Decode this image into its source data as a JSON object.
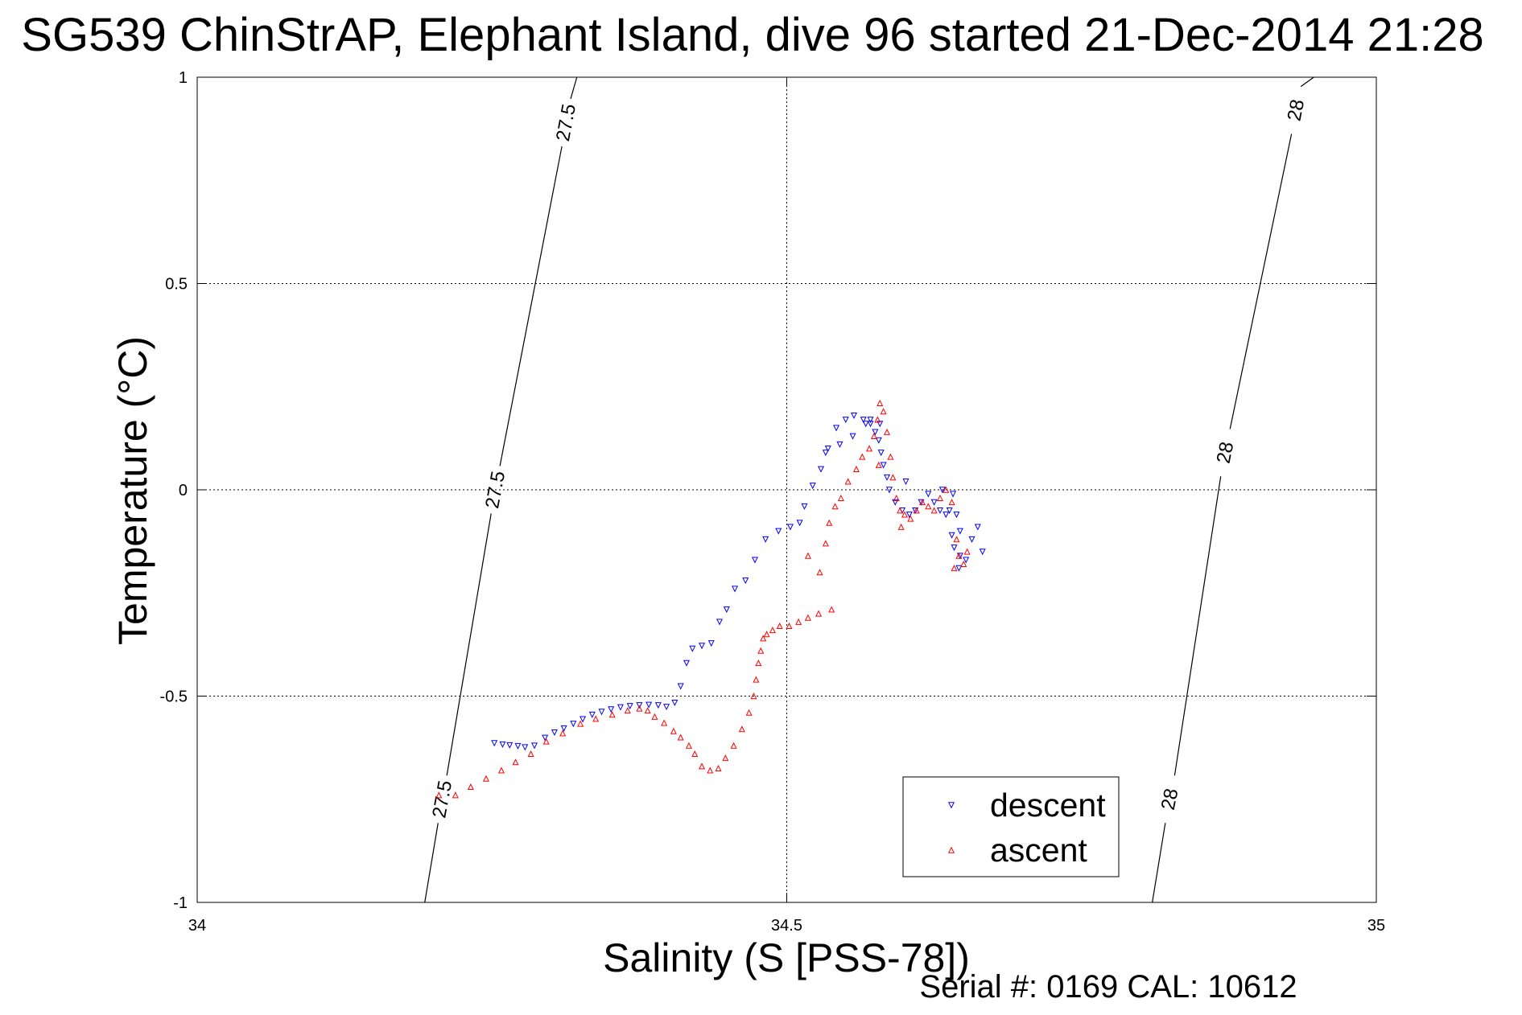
{
  "chart_data": {
    "type": "scatter",
    "title": "SG539 ChinStrAP, Elephant Island, dive 96 started 21-Dec-2014 21:28",
    "xlabel": "Salinity (S [PSS-78])",
    "ylabel": "Temperature (°C)",
    "xlim": [
      34,
      35
    ],
    "ylim": [
      -1,
      1
    ],
    "xticks": [
      34,
      34.5,
      35
    ],
    "xtick_labels": [
      "34",
      "34.5",
      "35"
    ],
    "yticks": [
      1,
      0.5,
      0,
      -0.5,
      -1
    ],
    "ytick_labels": [
      "1",
      "0.5",
      "0",
      "-0.5",
      "-1"
    ],
    "grid": true,
    "legend_position": "bottom-right",
    "footer": "Serial #: 0169 CAL: 10612",
    "isopycnals": [
      {
        "label": "27.5",
        "points": [
          [
            34.193,
            -1.0
          ],
          [
            34.322,
            1.0
          ]
        ],
        "label_positions": [
          [
            34.208,
            -0.75
          ],
          [
            34.253,
            0.0
          ],
          [
            34.313,
            0.89
          ]
        ]
      },
      {
        "label": "28",
        "points": [
          [
            34.81,
            -1.0
          ],
          [
            34.947,
            1.0
          ]
        ],
        "label_positions": [
          [
            34.825,
            -0.75
          ],
          [
            34.872,
            0.09
          ],
          [
            34.932,
            0.92
          ]
        ]
      }
    ],
    "series": [
      {
        "name": "descent",
        "color": "#0000ff",
        "marker": "triangle-down",
        "points": [
          [
            34.252,
            -0.614
          ],
          [
            34.259,
            -0.617
          ],
          [
            34.265,
            -0.619
          ],
          [
            34.272,
            -0.621
          ],
          [
            34.278,
            -0.624
          ],
          [
            34.286,
            -0.62
          ],
          [
            34.295,
            -0.601
          ],
          [
            34.303,
            -0.588
          ],
          [
            34.311,
            -0.578
          ],
          [
            34.319,
            -0.567
          ],
          [
            34.327,
            -0.556
          ],
          [
            34.335,
            -0.545
          ],
          [
            34.343,
            -0.538
          ],
          [
            34.351,
            -0.532
          ],
          [
            34.359,
            -0.527
          ],
          [
            34.367,
            -0.524
          ],
          [
            34.375,
            -0.522
          ],
          [
            34.383,
            -0.521
          ],
          [
            34.391,
            -0.522
          ],
          [
            34.398,
            -0.526
          ],
          [
            34.405,
            -0.516
          ],
          [
            34.41,
            -0.476
          ],
          [
            34.415,
            -0.42
          ],
          [
            34.42,
            -0.385
          ],
          [
            34.428,
            -0.378
          ],
          [
            34.436,
            -0.372
          ],
          [
            34.443,
            -0.32
          ],
          [
            34.449,
            -0.29
          ],
          [
            34.456,
            -0.24
          ],
          [
            34.465,
            -0.22
          ],
          [
            34.473,
            -0.17
          ],
          [
            34.482,
            -0.12
          ],
          [
            34.493,
            -0.1
          ],
          [
            34.503,
            -0.09
          ],
          [
            34.511,
            -0.08
          ],
          [
            34.515,
            -0.04
          ],
          [
            34.522,
            0.01
          ],
          [
            34.529,
            0.05
          ],
          [
            34.535,
            0.1
          ],
          [
            34.542,
            0.15
          ],
          [
            34.55,
            0.17
          ],
          [
            34.557,
            0.18
          ],
          [
            34.565,
            0.17
          ],
          [
            34.571,
            0.16
          ],
          [
            34.575,
            0.14
          ],
          [
            34.578,
            0.12
          ],
          [
            34.58,
            0.09
          ],
          [
            34.582,
            0.06
          ],
          [
            34.585,
            0.03
          ],
          [
            34.587,
            0.0
          ],
          [
            34.592,
            -0.03
          ],
          [
            34.598,
            -0.05
          ],
          [
            34.604,
            -0.06
          ],
          [
            34.609,
            -0.05
          ],
          [
            34.614,
            -0.03
          ],
          [
            34.62,
            -0.01
          ],
          [
            34.625,
            -0.03
          ],
          [
            34.63,
            -0.05
          ],
          [
            34.635,
            -0.06
          ],
          [
            34.638,
            -0.05
          ],
          [
            34.641,
            -0.01
          ],
          [
            34.644,
            -0.06
          ],
          [
            34.647,
            -0.1
          ],
          [
            34.642,
            -0.14
          ],
          [
            34.647,
            -0.16
          ],
          [
            34.652,
            -0.17
          ],
          [
            34.657,
            -0.12
          ],
          [
            34.662,
            -0.09
          ],
          [
            34.666,
            -0.15
          ],
          [
            34.646,
            -0.19
          ],
          [
            34.64,
            -0.11
          ],
          [
            34.632,
            0.0
          ],
          [
            34.601,
            0.02
          ],
          [
            34.579,
            0.16
          ],
          [
            34.571,
            0.17
          ],
          [
            34.567,
            0.16
          ],
          [
            34.556,
            0.13
          ],
          [
            34.545,
            0.11
          ],
          [
            34.533,
            0.09
          ]
        ]
      },
      {
        "name": "ascent",
        "color": "#ff0000",
        "marker": "triangle-up",
        "points": [
          [
            34.205,
            -0.74
          ],
          [
            34.219,
            -0.74
          ],
          [
            34.232,
            -0.72
          ],
          [
            34.245,
            -0.7
          ],
          [
            34.258,
            -0.68
          ],
          [
            34.27,
            -0.66
          ],
          [
            34.283,
            -0.64
          ],
          [
            34.296,
            -0.61
          ],
          [
            34.31,
            -0.59
          ],
          [
            34.325,
            -0.567
          ],
          [
            34.338,
            -0.555
          ],
          [
            34.352,
            -0.545
          ],
          [
            34.365,
            -0.535
          ],
          [
            34.375,
            -0.53
          ],
          [
            34.382,
            -0.535
          ],
          [
            34.388,
            -0.55
          ],
          [
            34.396,
            -0.565
          ],
          [
            34.404,
            -0.585
          ],
          [
            34.41,
            -0.6
          ],
          [
            34.417,
            -0.62
          ],
          [
            34.422,
            -0.64
          ],
          [
            34.428,
            -0.67
          ],
          [
            34.435,
            -0.68
          ],
          [
            34.442,
            -0.675
          ],
          [
            34.448,
            -0.65
          ],
          [
            34.455,
            -0.62
          ],
          [
            34.462,
            -0.58
          ],
          [
            34.468,
            -0.54
          ],
          [
            34.472,
            -0.5
          ],
          [
            34.474,
            -0.46
          ],
          [
            34.476,
            -0.42
          ],
          [
            34.478,
            -0.39
          ],
          [
            34.48,
            -0.36
          ],
          [
            34.483,
            -0.35
          ],
          [
            34.488,
            -0.34
          ],
          [
            34.494,
            -0.33
          ],
          [
            34.502,
            -0.33
          ],
          [
            34.51,
            -0.32
          ],
          [
            34.518,
            -0.31
          ],
          [
            34.527,
            -0.3
          ],
          [
            34.538,
            -0.29
          ],
          [
            34.518,
            -0.16
          ],
          [
            34.528,
            -0.2
          ],
          [
            34.533,
            -0.13
          ],
          [
            34.536,
            -0.08
          ],
          [
            34.541,
            -0.04
          ],
          [
            34.546,
            -0.02
          ],
          [
            34.552,
            0.02
          ],
          [
            34.559,
            0.05
          ],
          [
            34.564,
            0.08
          ],
          [
            34.57,
            0.1
          ],
          [
            34.574,
            0.13
          ],
          [
            34.577,
            0.17
          ],
          [
            34.579,
            0.21
          ],
          [
            34.582,
            0.19
          ],
          [
            34.585,
            0.14
          ],
          [
            34.588,
            0.08
          ],
          [
            34.59,
            0.03
          ],
          [
            34.593,
            -0.02
          ],
          [
            34.596,
            -0.05
          ],
          [
            34.6,
            -0.06
          ],
          [
            34.605,
            -0.07
          ],
          [
            34.61,
            -0.05
          ],
          [
            34.615,
            -0.03
          ],
          [
            34.62,
            -0.04
          ],
          [
            34.625,
            -0.05
          ],
          [
            34.63,
            -0.02
          ],
          [
            34.635,
            0.0
          ],
          [
            34.64,
            -0.03
          ],
          [
            34.644,
            -0.12
          ],
          [
            34.646,
            -0.16
          ],
          [
            34.65,
            -0.18
          ],
          [
            34.653,
            -0.15
          ],
          [
            34.642,
            -0.19
          ],
          [
            34.597,
            -0.09
          ],
          [
            34.578,
            0.06
          ]
        ]
      }
    ]
  }
}
